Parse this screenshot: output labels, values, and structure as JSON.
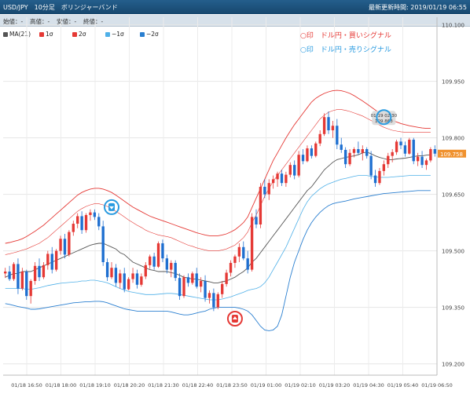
{
  "header": {
    "title": "USD/JPY　10分足　ボリンジャーバンド",
    "last_updated": "最新更新時間: 2019/01/19 06:55"
  },
  "ohlc_bar": {
    "open": "始値：-",
    "high": "高値：-",
    "low": "安値：-",
    "close": "終値：-"
  },
  "legend": [
    {
      "label": "MA(21)",
      "color": "#555555"
    },
    {
      "label": "1σ",
      "color": "#e53935"
    },
    {
      "label": "2σ",
      "color": "#e53935"
    },
    {
      "label": "−1σ",
      "color": "#4fb0e8"
    },
    {
      "label": "−2σ",
      "color": "#2a7fd0"
    }
  ],
  "signal_notes": {
    "buy": "○印　ドル円・買いシグナル",
    "sell": "○印　ドル円・売りシグナル"
  },
  "tooltip": {
    "time": "01/19 02:30",
    "price": "109.863"
  },
  "colors": {
    "up": "#e53935",
    "down": "#1e6fd0",
    "ma": "#555555",
    "band_red": "#e53935",
    "band_blue": "#4fb0e8",
    "band_blue2": "#2a7fd0"
  },
  "chart_data": {
    "type": "candlestick",
    "x_tick_labels": [
      "01/18 16:50",
      "01/18 18:00",
      "01/18 19:10",
      "01/18 20:20",
      "01/18 21:30",
      "01/18 22:40",
      "01/18 23:50",
      "01/19 01:00",
      "01/19 02:10",
      "01/19 03:20",
      "01/19 04:30",
      "01/19 05:40",
      "01/19 06:50"
    ],
    "y_tick_labels": [
      "110.100",
      "109.950",
      "109.800",
      "109.650",
      "109.500",
      "109.350",
      "109.200"
    ],
    "ylim": [
      109.17,
      110.12
    ],
    "current_price": "109.758",
    "buy_signal": {
      "bar": 54,
      "price": 109.32
    },
    "sell_signal": {
      "bar": 89,
      "price": 109.855
    },
    "sell_signal_2": {
      "bar": 25,
      "price": 109.616
    },
    "candles": [
      [
        109.44,
        109.455,
        109.428,
        109.445
      ],
      [
        109.445,
        109.46,
        109.42,
        109.425
      ],
      [
        109.425,
        109.47,
        109.42,
        109.465
      ],
      [
        109.465,
        109.48,
        109.385,
        109.4
      ],
      [
        109.4,
        109.455,
        109.395,
        109.445
      ],
      [
        109.445,
        109.45,
        109.37,
        109.38
      ],
      [
        109.38,
        109.425,
        109.36,
        109.42
      ],
      [
        109.42,
        109.47,
        109.41,
        109.46
      ],
      [
        109.46,
        109.48,
        109.42,
        109.43
      ],
      [
        109.43,
        109.47,
        109.425,
        109.462
      ],
      [
        109.462,
        109.5,
        109.45,
        109.492
      ],
      [
        109.492,
        109.51,
        109.44,
        109.45
      ],
      [
        109.45,
        109.505,
        109.445,
        109.5
      ],
      [
        109.5,
        109.54,
        109.49,
        109.532
      ],
      [
        109.532,
        109.545,
        109.48,
        109.49
      ],
      [
        109.49,
        109.555,
        109.485,
        109.55
      ],
      [
        109.55,
        109.58,
        109.54,
        109.572
      ],
      [
        109.572,
        109.6,
        109.56,
        109.592
      ],
      [
        109.592,
        109.605,
        109.545,
        109.555
      ],
      [
        109.555,
        109.6,
        109.548,
        109.595
      ],
      [
        109.595,
        109.61,
        109.58,
        109.602
      ],
      [
        109.602,
        109.61,
        109.582,
        109.59
      ],
      [
        109.59,
        109.6,
        109.555,
        109.565
      ],
      [
        109.565,
        109.58,
        109.46,
        109.47
      ],
      [
        109.47,
        109.48,
        109.42,
        109.43
      ],
      [
        109.43,
        109.47,
        109.425,
        109.455
      ],
      [
        109.455,
        109.465,
        109.405,
        109.415
      ],
      [
        109.415,
        109.45,
        109.4,
        109.44
      ],
      [
        109.44,
        109.455,
        109.39,
        109.398
      ],
      [
        109.398,
        109.43,
        109.395,
        109.425
      ],
      [
        109.425,
        109.455,
        109.415,
        109.44
      ],
      [
        109.44,
        109.45,
        109.4,
        109.41
      ],
      [
        109.41,
        109.44,
        109.405,
        109.432
      ],
      [
        109.432,
        109.47,
        109.425,
        109.462
      ],
      [
        109.462,
        109.49,
        109.452,
        109.485
      ],
      [
        109.485,
        109.495,
        109.45,
        109.458
      ],
      [
        109.458,
        109.525,
        109.455,
        109.52
      ],
      [
        109.52,
        109.53,
        109.47,
        109.48
      ],
      [
        109.48,
        109.49,
        109.44,
        109.45
      ],
      [
        109.45,
        109.475,
        109.43,
        109.468
      ],
      [
        109.468,
        109.475,
        109.42,
        109.428
      ],
      [
        109.428,
        109.44,
        109.37,
        109.38
      ],
      [
        109.38,
        109.435,
        109.375,
        109.43
      ],
      [
        109.43,
        109.44,
        109.405,
        109.415
      ],
      [
        109.415,
        109.445,
        109.41,
        109.44
      ],
      [
        109.44,
        109.455,
        109.4,
        109.405
      ],
      [
        109.405,
        109.43,
        109.39,
        109.42
      ],
      [
        109.42,
        109.435,
        109.365,
        109.375
      ],
      [
        109.375,
        109.395,
        109.36,
        109.388
      ],
      [
        109.388,
        109.4,
        109.34,
        109.35
      ],
      [
        109.35,
        109.39,
        109.345,
        109.385
      ],
      [
        109.385,
        109.42,
        109.375,
        109.412
      ],
      [
        109.412,
        109.45,
        109.405,
        109.442
      ],
      [
        109.442,
        109.475,
        109.432,
        109.468
      ],
      [
        109.468,
        109.49,
        109.455,
        109.485
      ],
      [
        109.485,
        109.52,
        109.47,
        109.51
      ],
      [
        109.51,
        109.525,
        109.475,
        109.48
      ],
      [
        109.48,
        109.5,
        109.44,
        109.45
      ],
      [
        109.45,
        109.6,
        109.445,
        109.59
      ],
      [
        109.59,
        109.61,
        109.56,
        109.57
      ],
      [
        109.57,
        109.68,
        109.56,
        109.67
      ],
      [
        109.67,
        109.69,
        109.64,
        109.65
      ],
      [
        109.65,
        109.69,
        109.635,
        109.68
      ],
      [
        109.68,
        109.7,
        109.665,
        109.69
      ],
      [
        109.69,
        109.71,
        109.67,
        109.705
      ],
      [
        109.705,
        109.715,
        109.672,
        109.68
      ],
      [
        109.68,
        109.71,
        109.67,
        109.702
      ],
      [
        109.702,
        109.735,
        109.695,
        109.728
      ],
      [
        109.728,
        109.74,
        109.69,
        109.7
      ],
      [
        109.7,
        109.765,
        109.695,
        109.755
      ],
      [
        109.755,
        109.77,
        109.73,
        109.738
      ],
      [
        109.738,
        109.78,
        109.735,
        109.772
      ],
      [
        109.772,
        109.78,
        109.745,
        109.752
      ],
      [
        109.752,
        109.79,
        109.748,
        109.785
      ],
      [
        109.785,
        109.82,
        109.778,
        109.81
      ],
      [
        109.81,
        109.865,
        109.805,
        109.855
      ],
      [
        109.855,
        109.87,
        109.81,
        109.82
      ],
      [
        109.82,
        109.845,
        109.8,
        109.832
      ],
      [
        109.832,
        109.85,
        109.77,
        109.782
      ],
      [
        109.782,
        109.8,
        109.76,
        109.768
      ],
      [
        109.768,
        109.775,
        109.72,
        109.73
      ],
      [
        109.73,
        109.77,
        109.725,
        109.76
      ],
      [
        109.76,
        109.775,
        109.748,
        109.77
      ],
      [
        109.77,
        109.79,
        109.755,
        109.76
      ],
      [
        109.76,
        109.78,
        109.74,
        109.77
      ],
      [
        109.77,
        109.775,
        109.745,
        109.752
      ],
      [
        109.752,
        109.765,
        109.69,
        109.7
      ],
      [
        109.7,
        109.715,
        109.67,
        109.68
      ],
      [
        109.68,
        109.72,
        109.675,
        109.712
      ],
      [
        109.712,
        109.74,
        109.7,
        109.73
      ],
      [
        109.73,
        109.76,
        109.72,
        109.752
      ],
      [
        109.752,
        109.77,
        109.735,
        109.762
      ],
      [
        109.762,
        109.795,
        109.755,
        109.79
      ],
      [
        109.79,
        109.8,
        109.77,
        109.78
      ],
      [
        109.78,
        109.79,
        109.75,
        109.758
      ],
      [
        109.758,
        109.8,
        109.755,
        109.795
      ],
      [
        109.795,
        109.8,
        109.73,
        109.738
      ],
      [
        109.738,
        109.76,
        109.725,
        109.75
      ],
      [
        109.75,
        109.765,
        109.72,
        109.728
      ],
      [
        109.728,
        109.745,
        109.715,
        109.74
      ],
      [
        109.74,
        109.775,
        109.735,
        109.77
      ],
      [
        109.77,
        109.78,
        109.75,
        109.758
      ]
    ],
    "ma": [
      109.43,
      109.435,
      109.44,
      109.44,
      109.445,
      109.445,
      109.445,
      109.45,
      109.455,
      109.46,
      109.465,
      109.47,
      109.475,
      109.48,
      109.485,
      109.49,
      109.495,
      109.5,
      109.505,
      109.51,
      109.515,
      109.518,
      109.52,
      109.52,
      109.515,
      109.51,
      109.505,
      109.495,
      109.49,
      109.48,
      109.47,
      109.465,
      109.46,
      109.455,
      109.45,
      109.448,
      109.445,
      109.445,
      109.445,
      109.442,
      109.44,
      109.435,
      109.43,
      109.428,
      109.425,
      109.425,
      109.422,
      109.42,
      109.418,
      109.415,
      109.415,
      109.418,
      109.42,
      109.425,
      109.43,
      109.438,
      109.445,
      109.455,
      109.47,
      109.48,
      109.495,
      109.51,
      109.525,
      109.54,
      109.555,
      109.57,
      109.585,
      109.6,
      109.615,
      109.63,
      109.645,
      109.66,
      109.67,
      109.685,
      109.7,
      109.715,
      109.725,
      109.735,
      109.742,
      109.745,
      109.748,
      109.75,
      109.752,
      109.755,
      109.76,
      109.762,
      109.758,
      109.752,
      109.748,
      109.745,
      109.742,
      109.742,
      109.744,
      109.745,
      109.746,
      109.748,
      109.75,
      109.752,
      109.752,
      109.754,
      109.755
    ],
    "upper1": [
      109.49,
      109.492,
      109.495,
      109.498,
      109.502,
      109.505,
      109.51,
      109.515,
      109.52,
      109.528,
      109.535,
      109.545,
      109.555,
      109.565,
      109.575,
      109.585,
      109.595,
      109.605,
      109.612,
      109.618,
      109.622,
      109.625,
      109.625,
      109.622,
      109.618,
      109.612,
      109.605,
      109.598,
      109.59,
      109.582,
      109.575,
      109.568,
      109.562,
      109.555,
      109.55,
      109.546,
      109.542,
      109.54,
      109.538,
      109.535,
      109.53,
      109.525,
      109.52,
      109.515,
      109.512,
      109.508,
      109.505,
      109.502,
      109.5,
      109.5,
      109.5,
      109.502,
      109.505,
      109.51,
      109.515,
      109.525,
      109.535,
      109.55,
      109.575,
      109.595,
      109.62,
      109.645,
      109.665,
      109.685,
      109.7,
      109.715,
      109.73,
      109.745,
      109.76,
      109.775,
      109.79,
      109.805,
      109.82,
      109.835,
      109.85,
      109.86,
      109.868,
      109.872,
      109.875,
      109.875,
      109.873,
      109.87,
      109.866,
      109.862,
      109.858,
      109.852,
      109.846,
      109.84,
      109.834,
      109.828,
      109.824,
      109.82,
      109.818,
      109.816,
      109.815,
      109.815,
      109.815,
      109.815,
      109.815,
      109.815,
      109.815
    ],
    "upper2": [
      109.52,
      109.522,
      109.525,
      109.528,
      109.532,
      109.538,
      109.545,
      109.552,
      109.56,
      109.568,
      109.578,
      109.588,
      109.598,
      109.608,
      109.618,
      109.628,
      109.638,
      109.648,
      109.655,
      109.66,
      109.664,
      109.666,
      109.666,
      109.664,
      109.66,
      109.655,
      109.648,
      109.64,
      109.632,
      109.624,
      109.616,
      109.61,
      109.604,
      109.598,
      109.592,
      109.588,
      109.584,
      109.58,
      109.576,
      109.572,
      109.568,
      109.564,
      109.56,
      109.556,
      109.552,
      109.548,
      109.545,
      109.542,
      109.54,
      109.54,
      109.54,
      109.542,
      109.545,
      109.55,
      109.556,
      109.565,
      109.575,
      109.59,
      109.615,
      109.64,
      109.665,
      109.69,
      109.715,
      109.74,
      109.76,
      109.78,
      109.8,
      109.818,
      109.835,
      109.85,
      109.865,
      109.88,
      109.895,
      109.905,
      109.912,
      109.918,
      109.922,
      109.925,
      109.926,
      109.925,
      109.922,
      109.918,
      109.912,
      109.905,
      109.898,
      109.89,
      109.882,
      109.874,
      109.866,
      109.858,
      109.852,
      109.846,
      109.842,
      109.838,
      109.835,
      109.832,
      109.83,
      109.828,
      109.826,
      109.825,
      109.825
    ],
    "lower1": [
      109.4,
      109.4,
      109.4,
      109.4,
      109.4,
      109.398,
      109.398,
      109.4,
      109.402,
      109.405,
      109.408,
      109.41,
      109.412,
      109.414,
      109.415,
      109.416,
      109.417,
      109.418,
      109.42,
      109.42,
      109.422,
      109.422,
      109.42,
      109.418,
      109.415,
      109.41,
      109.405,
      109.4,
      109.396,
      109.392,
      109.39,
      109.388,
      109.386,
      109.384,
      109.384,
      109.384,
      109.385,
      109.386,
      109.387,
      109.387,
      109.386,
      109.384,
      109.382,
      109.38,
      109.378,
      109.376,
      109.374,
      109.372,
      109.37,
      109.37,
      109.37,
      109.372,
      109.375,
      109.378,
      109.382,
      109.386,
      109.39,
      109.395,
      109.398,
      109.4,
      109.405,
      109.415,
      109.43,
      109.45,
      109.47,
      109.49,
      109.51,
      109.535,
      109.56,
      109.585,
      109.61,
      109.63,
      109.645,
      109.655,
      109.665,
      109.672,
      109.678,
      109.682,
      109.686,
      109.69,
      109.692,
      109.695,
      109.698,
      109.7,
      109.7,
      109.7,
      109.698,
      109.696,
      109.695,
      109.695,
      109.695,
      109.696,
      109.697,
      109.698,
      109.699,
      109.7,
      109.7,
      109.7,
      109.7,
      109.7,
      109.7
    ],
    "lower2": [
      109.36,
      109.358,
      109.355,
      109.352,
      109.35,
      109.348,
      109.345,
      109.345,
      109.346,
      109.348,
      109.35,
      109.352,
      109.354,
      109.356,
      109.358,
      109.36,
      109.362,
      109.363,
      109.364,
      109.365,
      109.365,
      109.366,
      109.366,
      109.365,
      109.362,
      109.358,
      109.354,
      109.35,
      109.346,
      109.344,
      109.342,
      109.34,
      109.34,
      109.34,
      109.34,
      109.34,
      109.34,
      109.34,
      109.34,
      109.338,
      109.335,
      109.332,
      109.33,
      109.33,
      109.332,
      109.335,
      109.338,
      109.34,
      109.345,
      109.348,
      109.35,
      109.35,
      109.35,
      109.35,
      109.35,
      109.348,
      109.345,
      109.34,
      109.33,
      109.315,
      109.3,
      109.29,
      109.288,
      109.29,
      109.3,
      109.33,
      109.38,
      109.43,
      109.47,
      109.5,
      109.53,
      109.555,
      109.575,
      109.59,
      109.602,
      109.612,
      109.62,
      109.625,
      109.628,
      109.63,
      109.632,
      109.635,
      109.638,
      109.64,
      109.642,
      109.644,
      109.646,
      109.648,
      109.65,
      109.652,
      109.653,
      109.654,
      109.655,
      109.656,
      109.657,
      109.658,
      109.659,
      109.66,
      109.66,
      109.66,
      109.66
    ]
  }
}
